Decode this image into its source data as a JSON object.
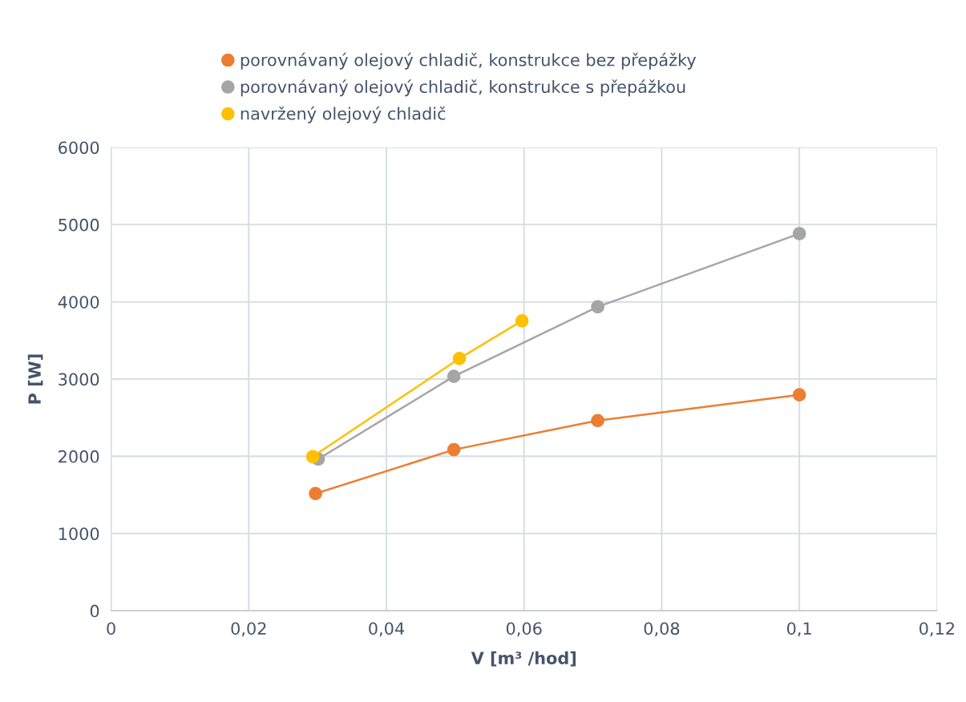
{
  "chart_data": {
    "type": "line",
    "xlabel": "V [m³ /hod]",
    "ylabel": "P [W]",
    "xlim": [
      0,
      0.12
    ],
    "xticks": [
      0,
      {
        "value": 0.02,
        "label": "0,02"
      },
      {
        "value": 0.04,
        "label": "0,04"
      },
      {
        "value": 0.06,
        "label": "0,06"
      },
      {
        "value": 0.08,
        "label": "0,08"
      },
      {
        "value": 0.1,
        "label": "0,1"
      },
      {
        "value": 0.12,
        "label": "0,12"
      }
    ],
    "ylim": [
      0,
      6000
    ],
    "yticks": [
      0,
      1000,
      2000,
      3000,
      4000,
      5000,
      6000
    ],
    "grid": true,
    "legend": "top",
    "marker": "circle",
    "line_style": "solid",
    "series": [
      {
        "name": "porovnávaný olejový chladič, konstrukce bez přepážky",
        "color": "#ed7d31",
        "x": [
          0.0297,
          0.0498,
          0.0707,
          0.1
        ],
        "values": [
          1517,
          2086,
          2463,
          2796
        ]
      },
      {
        "name": "porovnávaný olejový chladič, konstrukce s přepážkou",
        "color": "#a5a5a5",
        "x": [
          0.0301,
          0.0498,
          0.0707,
          0.1
        ],
        "values": [
          1965,
          3035,
          3935,
          4884
        ]
      },
      {
        "name": "navržený olejový chladič",
        "color": "#ffc000",
        "x": [
          0.0293,
          0.0506,
          0.0597
        ],
        "values": [
          1995,
          3267,
          3755
        ]
      }
    ]
  }
}
